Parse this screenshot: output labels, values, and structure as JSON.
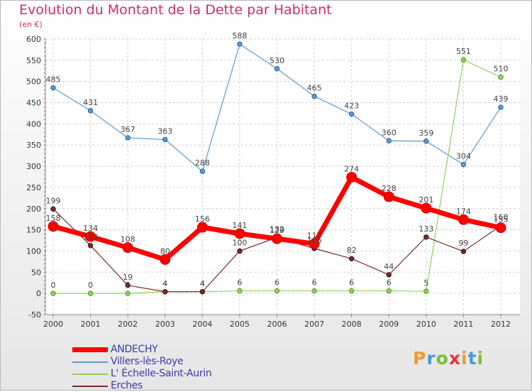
{
  "title": "Evolution du Montant de la Dette par Habitant",
  "subtitle": "(en €)",
  "logo": {
    "text": "Proxiti",
    "colors": [
      "#f29a2e",
      "#4a9ad8",
      "#7abf3a",
      "#e8343c",
      "#f29a2e",
      "#4a9ad8",
      "#7abf3a"
    ]
  },
  "chart_data": {
    "type": "line",
    "title": "Evolution du Montant de la Dette par Habitant",
    "subtitle": "(en €)",
    "xlabel": "",
    "ylabel": "",
    "x": [
      "2000",
      "2001",
      "2002",
      "2003",
      "2004",
      "2005",
      "2006",
      "2007",
      "2008",
      "2009",
      "2010",
      "2011",
      "2012"
    ],
    "ylim": [
      -50,
      600
    ],
    "yticks": [
      -50,
      0,
      50,
      100,
      150,
      200,
      250,
      300,
      350,
      400,
      450,
      500,
      550,
      600
    ],
    "grid": true,
    "legend_position": "bottom-left",
    "series": [
      {
        "name": "Villers-lès-Roye",
        "color": "#5b9bd5",
        "values": [
          485,
          431,
          367,
          363,
          288,
          588,
          530,
          465,
          423,
          360,
          359,
          304,
          439
        ]
      },
      {
        "name": "L' Échelle-Saint-Aurin",
        "color": "#8fd35a",
        "values": [
          0,
          0,
          0,
          4,
          4,
          6,
          6,
          6,
          6,
          6,
          5,
          551,
          510
        ]
      },
      {
        "name": "Erches",
        "color": "#7a2a2a",
        "values": [
          199,
          113,
          19,
          4,
          4,
          100,
          132,
          106,
          82,
          44,
          133,
          99,
          160
        ]
      },
      {
        "name": "ANDECHY",
        "color": "#ff0000",
        "values": [
          158,
          134,
          108,
          80,
          156,
          141,
          129,
          117,
          274,
          228,
          201,
          174,
          155
        ]
      }
    ],
    "legend_order": [
      "ANDECHY",
      "Villers-lès-Roye",
      "L' Échelle-Saint-Aurin",
      "Erches"
    ]
  }
}
